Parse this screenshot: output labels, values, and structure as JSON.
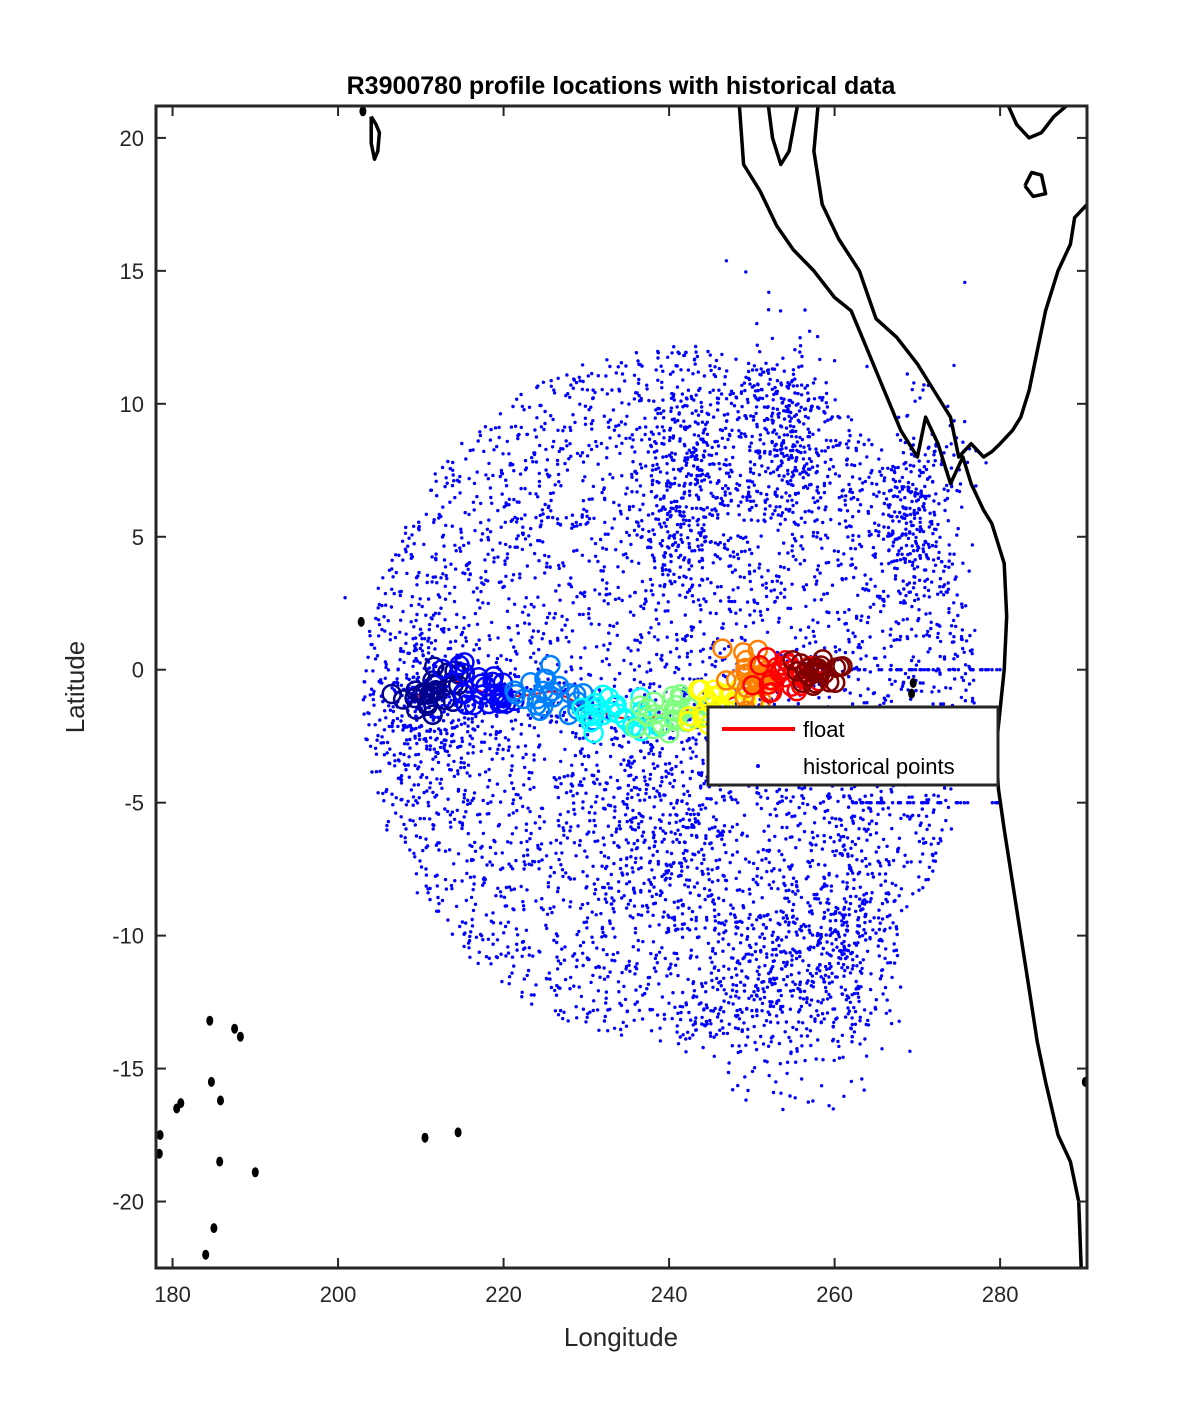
{
  "chart_data": {
    "type": "scatter",
    "title": "R3900780 profile locations with historical data",
    "xlabel": "Longitude",
    "ylabel": "Latitude",
    "xlim": [
      178,
      290.5
    ],
    "ylim": [
      -22.5,
      21.2
    ],
    "xticks": [
      180,
      200,
      220,
      240,
      260,
      280
    ],
    "yticks": [
      -20,
      -15,
      -10,
      -5,
      0,
      5,
      10,
      15,
      20
    ],
    "grid": false,
    "legend": {
      "placement": "inside, right-center",
      "entries": [
        {
          "name": "float",
          "style": "line",
          "color": "#ff0000"
        },
        {
          "name": "historical points",
          "style": "marker",
          "color": "#0000ff"
        }
      ]
    },
    "colors": {
      "historical": "#0000ff",
      "float": "#ff0000",
      "coastline": "#000000"
    },
    "historical_points": {
      "description_region": {
        "lon_center": 240,
        "lat_center": -1,
        "lon_radius": 37,
        "lat_radius": 13
      },
      "clusters": [
        {
          "lon": 242,
          "lat": 7,
          "lon_spread": 3,
          "lat_spread": 2
        },
        {
          "lon": 254,
          "lat": 9,
          "lon_spread": 3,
          "lat_spread": 2
        },
        {
          "lon": 270,
          "lat": 6,
          "lon_spread": 3,
          "lat_spread": 2
        },
        {
          "lon": 252,
          "lat": -12,
          "lon_spread": 5,
          "lat_spread": 2
        },
        {
          "lon": 262,
          "lat": -10,
          "lon_spread": 3,
          "lat_spread": 2.5
        },
        {
          "lon": 239,
          "lat": -6,
          "lon_spread": 5,
          "lat_spread": 3
        },
        {
          "lon": 211,
          "lat": -1.5,
          "lon_spread": 3,
          "lat_spread": 2
        }
      ],
      "equator_line": {
        "lat": 0,
        "lon_from": 262,
        "lon_to": 280
      },
      "south_line": {
        "lat": -5,
        "lon_from": 262,
        "lon_to": 280
      }
    },
    "float_track": {
      "lon": [
        209,
        211,
        214,
        218,
        222,
        226,
        230,
        234,
        237,
        240,
        243,
        246,
        248,
        250,
        252,
        254,
        256,
        258,
        260
      ],
      "lat": [
        -1.2,
        -0.6,
        -0.4,
        -0.9,
        -1.0,
        -0.8,
        -1.4,
        -1.8,
        -1.9,
        -1.6,
        -1.5,
        -1.3,
        -1.0,
        -0.1,
        -0.2,
        -0.3,
        -0.2,
        -0.1,
        0.0
      ],
      "cycle_color_order": [
        "#00008f",
        "#0000ff",
        "#0080ff",
        "#00ffff",
        "#80ff80",
        "#ffff00",
        "#ff8000",
        "#ff0000",
        "#800000"
      ]
    },
    "coastlines": [
      {
        "name": "americas",
        "points": [
          [
            248.5,
            21.2
          ],
          [
            249,
            19
          ],
          [
            251,
            18
          ],
          [
            253,
            16.7
          ],
          [
            255,
            15.8
          ],
          [
            257.5,
            15
          ],
          [
            260,
            14
          ],
          [
            262,
            13.5
          ],
          [
            264,
            12
          ],
          [
            266,
            10.5
          ],
          [
            268,
            9
          ],
          [
            270,
            8
          ],
          [
            271,
            9.5
          ],
          [
            272.5,
            8.5
          ],
          [
            274,
            7
          ],
          [
            275.5,
            8
          ],
          [
            276.5,
            7
          ],
          [
            278,
            6
          ],
          [
            279,
            5.5
          ],
          [
            280.5,
            4
          ],
          [
            280.8,
            2
          ],
          [
            280.5,
            0
          ],
          [
            280,
            -1.5
          ],
          [
            279.5,
            -3
          ],
          [
            279.8,
            -4.5
          ],
          [
            280.5,
            -6
          ],
          [
            281.5,
            -8
          ],
          [
            282.5,
            -10
          ],
          [
            283.5,
            -12
          ],
          [
            284.5,
            -14
          ],
          [
            285.5,
            -15.5
          ],
          [
            287,
            -17.5
          ],
          [
            288.5,
            -18.5
          ],
          [
            289.5,
            -20
          ],
          [
            289.8,
            -22.5
          ]
        ]
      },
      {
        "name": "baja",
        "points": [
          [
            252,
            21.2
          ],
          [
            252.5,
            20
          ],
          [
            253.5,
            19
          ],
          [
            254.5,
            19.5
          ],
          [
            255.5,
            21.2
          ]
        ]
      },
      {
        "name": "mexico-coast",
        "points": [
          [
            258,
            21.2
          ],
          [
            257.5,
            19.5
          ],
          [
            258.5,
            17.5
          ],
          [
            260.5,
            16.2
          ],
          [
            263,
            15
          ],
          [
            265,
            13.2
          ],
          [
            267.5,
            12.5
          ],
          [
            270,
            11.5
          ],
          [
            272,
            10.5
          ],
          [
            274,
            9.5
          ],
          [
            275,
            8
          ],
          [
            276.5,
            8.5
          ],
          [
            278,
            8
          ],
          [
            279,
            8.2
          ],
          [
            280,
            8.5
          ],
          [
            281.5,
            9
          ],
          [
            282.5,
            9.5
          ],
          [
            283.5,
            10.5
          ],
          [
            284.5,
            12
          ],
          [
            285.5,
            13.5
          ],
          [
            287,
            15
          ],
          [
            288.5,
            16
          ],
          [
            289,
            17
          ],
          [
            290.5,
            17.5
          ]
        ]
      },
      {
        "name": "cuba",
        "points": [
          [
            281,
            21.2
          ],
          [
            282,
            20.5
          ],
          [
            283.5,
            20
          ],
          [
            285,
            20.2
          ],
          [
            286.5,
            20.8
          ],
          [
            288,
            21.2
          ]
        ]
      },
      {
        "name": "hispaniola",
        "points": [
          [
            283,
            18.2
          ],
          [
            284,
            17.8
          ],
          [
            285.5,
            17.9
          ],
          [
            285,
            18.6
          ],
          [
            283.8,
            18.7
          ],
          [
            283,
            18.2
          ]
        ]
      },
      {
        "name": "hawaii",
        "points": [
          [
            204,
            20.8
          ],
          [
            204.6,
            20.5
          ],
          [
            205,
            20.2
          ],
          [
            204.8,
            19.5
          ],
          [
            204.4,
            19.2
          ],
          [
            204,
            19.8
          ],
          [
            204,
            20.8
          ]
        ]
      }
    ],
    "islands": [
      {
        "lon": 203,
        "lat": 21.0
      },
      {
        "lon": 202.8,
        "lat": 1.8
      },
      {
        "lon": 269.5,
        "lat": -0.5
      },
      {
        "lon": 269.3,
        "lat": -0.9
      },
      {
        "lon": 187.5,
        "lat": -13.5
      },
      {
        "lon": 188.2,
        "lat": -13.8
      },
      {
        "lon": 185.8,
        "lat": -16.2
      },
      {
        "lon": 184.7,
        "lat": -15.5
      },
      {
        "lon": 184.5,
        "lat": -13.2
      },
      {
        "lon": 180.5,
        "lat": -16.5
      },
      {
        "lon": 181,
        "lat": -16.3
      },
      {
        "lon": 178.5,
        "lat": -17.5
      },
      {
        "lon": 178.4,
        "lat": -18.2
      },
      {
        "lon": 185.7,
        "lat": -18.5
      },
      {
        "lon": 190,
        "lat": -18.9
      },
      {
        "lon": 185.0,
        "lat": -21.0
      },
      {
        "lon": 184.0,
        "lat": -22.0
      },
      {
        "lon": 210.5,
        "lat": -17.6
      },
      {
        "lon": 214.5,
        "lat": -17.4
      },
      {
        "lon": 290.3,
        "lat": -15.5
      }
    ]
  }
}
